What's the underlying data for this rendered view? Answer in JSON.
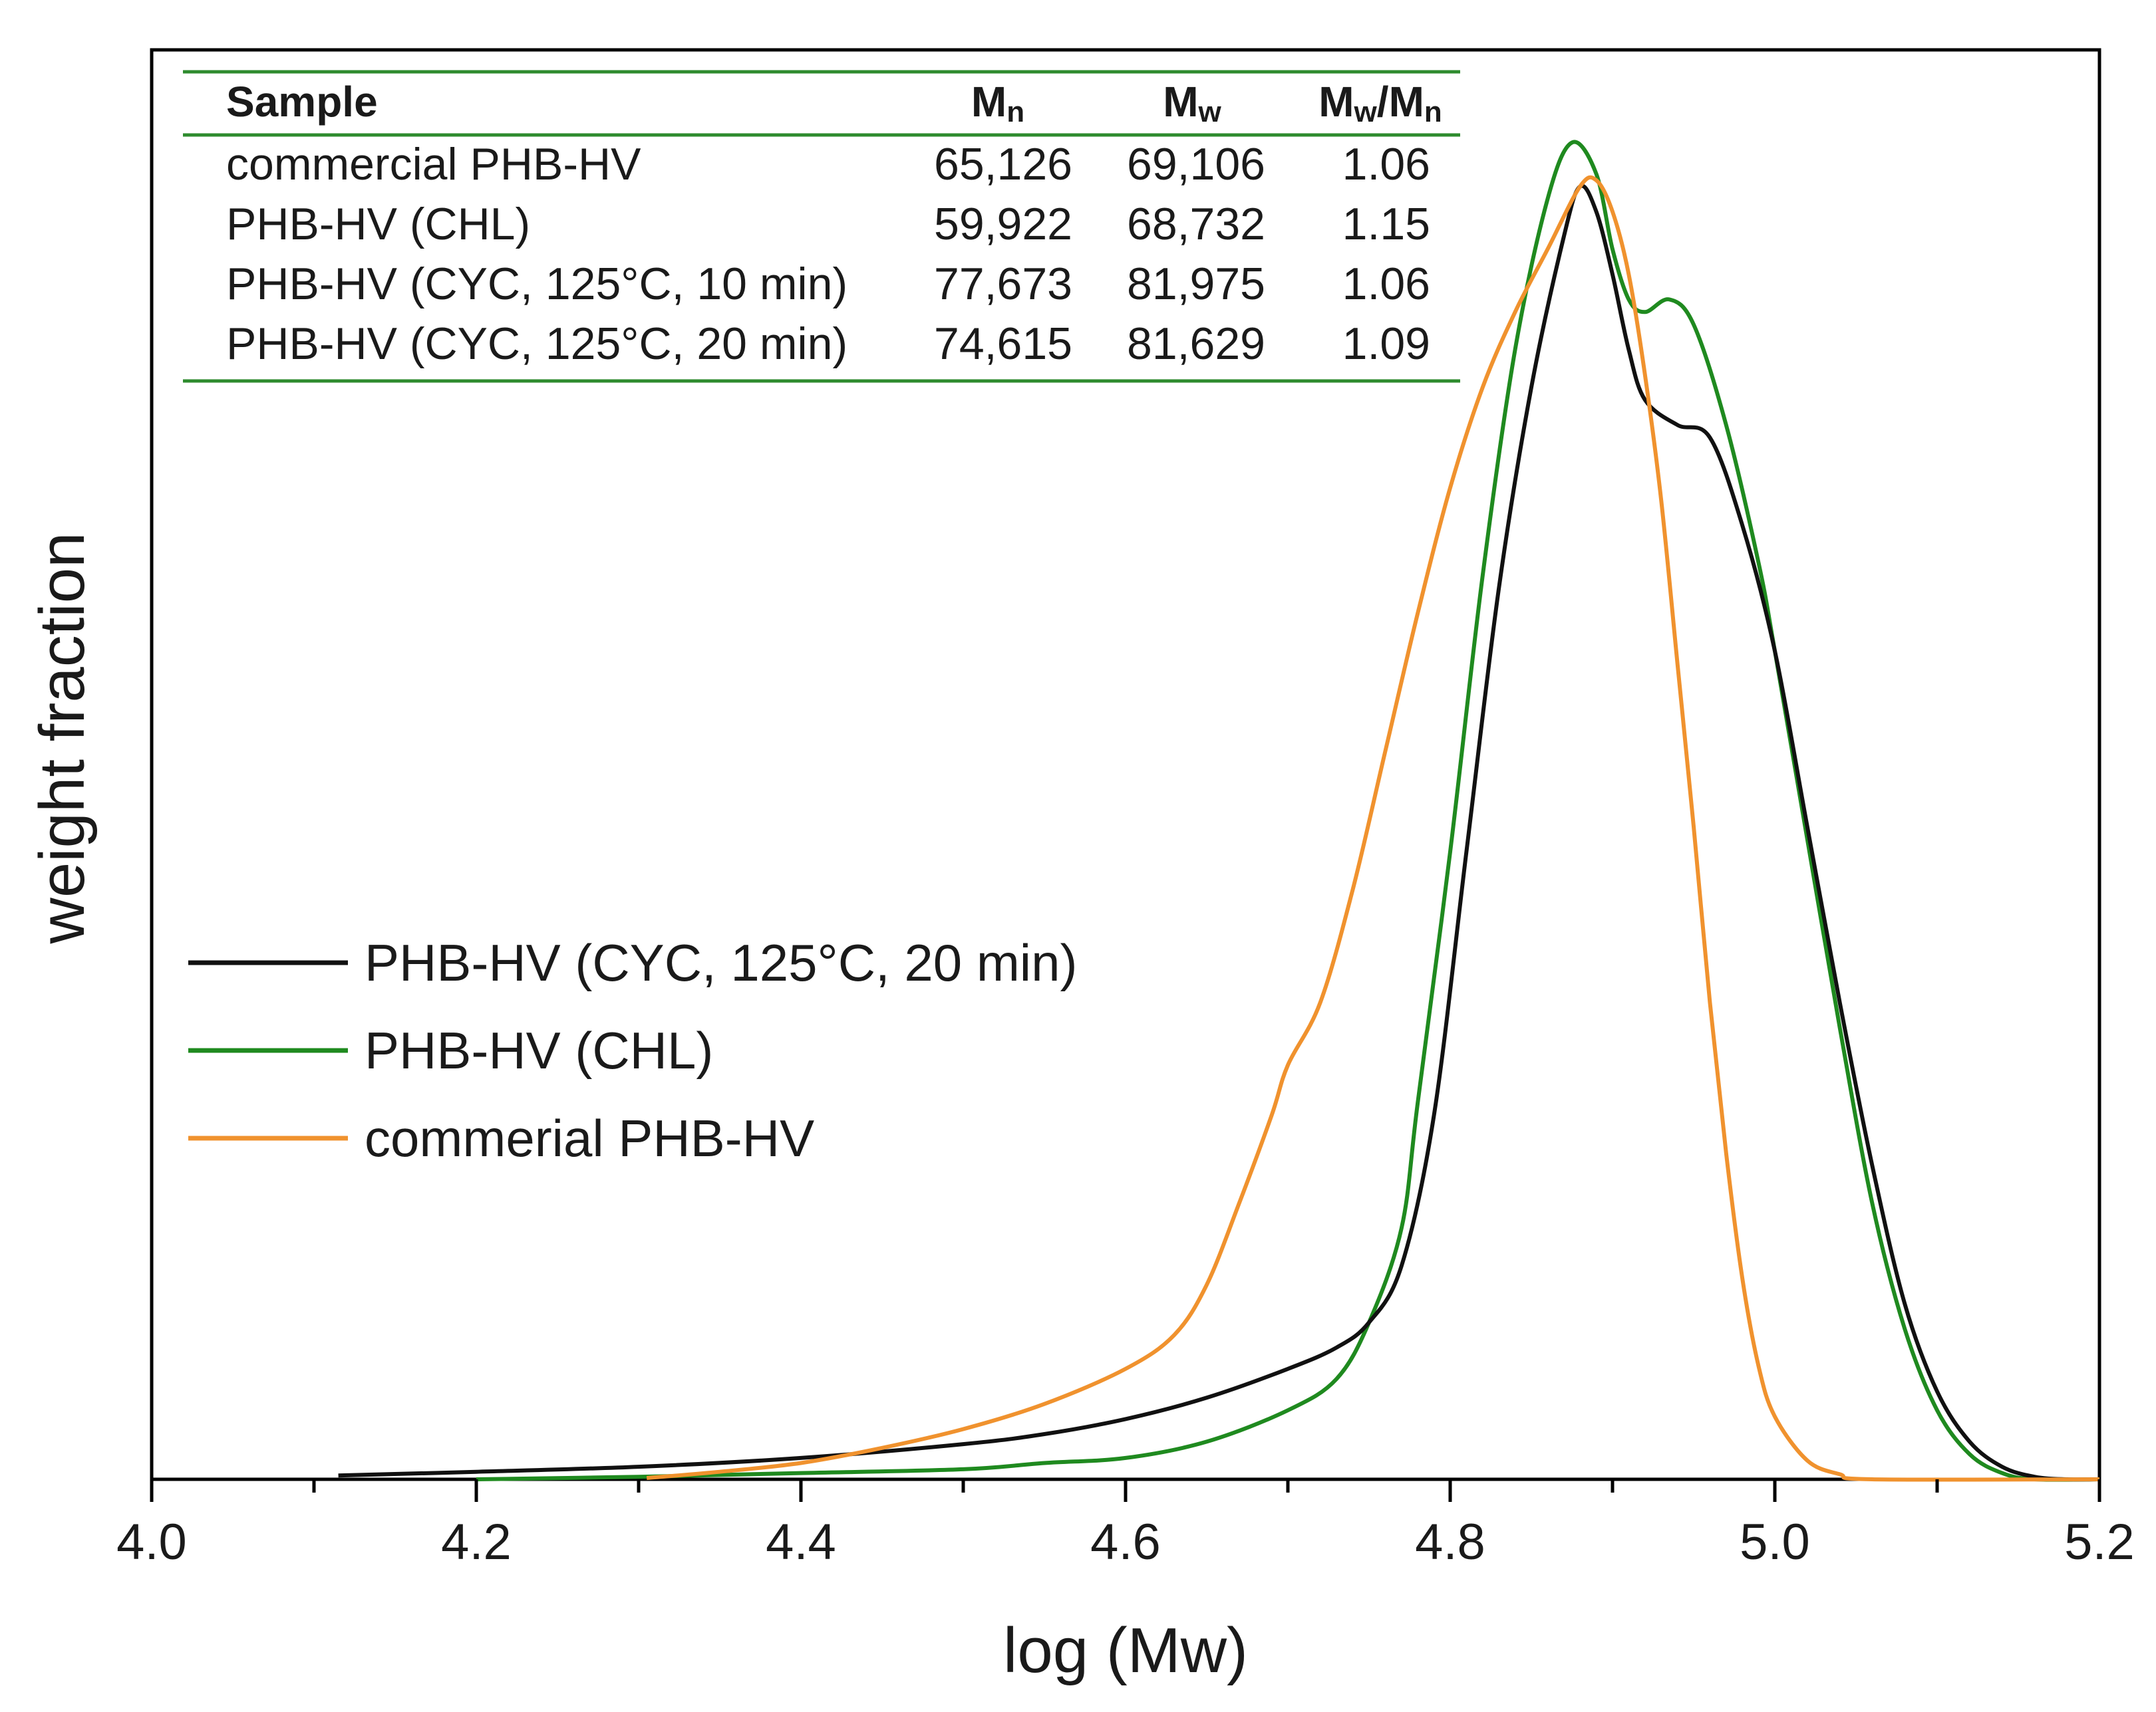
{
  "chart_data": {
    "type": "line",
    "xlabel": "log (Mw)",
    "ylabel": "weight fraction",
    "xlim": [
      4.0,
      5.2
    ],
    "ylim": [
      0,
      1.07
    ],
    "xticks": [
      "4.0",
      "4.2",
      "4.4",
      "4.6",
      "4.8",
      "5.0",
      "5.2"
    ],
    "x_tick_values": [
      4.0,
      4.2,
      4.4,
      4.6,
      4.8,
      5.0,
      5.2
    ],
    "grid": false,
    "legend_position": "middle-left",
    "series": [
      {
        "name": "PHB-HV (CYC, 125°C, 20 min)",
        "color": "#111111",
        "points": [
          [
            4.115,
            0.003
          ],
          [
            4.2,
            0.006
          ],
          [
            4.3,
            0.01
          ],
          [
            4.4,
            0.017
          ],
          [
            4.5,
            0.028
          ],
          [
            4.55,
            0.036
          ],
          [
            4.6,
            0.048
          ],
          [
            4.65,
            0.065
          ],
          [
            4.7,
            0.088
          ],
          [
            4.73,
            0.105
          ],
          [
            4.75,
            0.125
          ],
          [
            4.77,
            0.17
          ],
          [
            4.79,
            0.29
          ],
          [
            4.81,
            0.5
          ],
          [
            4.83,
            0.71
          ],
          [
            4.85,
            0.87
          ],
          [
            4.87,
            0.99
          ],
          [
            4.88,
            1.03
          ],
          [
            4.89,
            1.01
          ],
          [
            4.9,
            0.96
          ],
          [
            4.91,
            0.9
          ],
          [
            4.92,
            0.86
          ],
          [
            4.94,
            0.84
          ],
          [
            4.96,
            0.83
          ],
          [
            4.98,
            0.76
          ],
          [
            5.0,
            0.66
          ],
          [
            5.02,
            0.52
          ],
          [
            5.04,
            0.38
          ],
          [
            5.06,
            0.25
          ],
          [
            5.08,
            0.14
          ],
          [
            5.1,
            0.07
          ],
          [
            5.12,
            0.03
          ],
          [
            5.14,
            0.01
          ],
          [
            5.16,
            0.002
          ],
          [
            5.18,
            0.0
          ],
          [
            5.2,
            0.0
          ]
        ]
      },
      {
        "name": "PHB-HV (CHL)",
        "color": "#1f8a1f",
        "points": [
          [
            4.2,
            0.0
          ],
          [
            4.3,
            0.002
          ],
          [
            4.4,
            0.005
          ],
          [
            4.5,
            0.008
          ],
          [
            4.55,
            0.013
          ],
          [
            4.6,
            0.017
          ],
          [
            4.65,
            0.03
          ],
          [
            4.7,
            0.055
          ],
          [
            4.73,
            0.08
          ],
          [
            4.75,
            0.125
          ],
          [
            4.77,
            0.2
          ],
          [
            4.78,
            0.3
          ],
          [
            4.8,
            0.5
          ],
          [
            4.82,
            0.72
          ],
          [
            4.84,
            0.9
          ],
          [
            4.86,
            1.02
          ],
          [
            4.875,
            1.065
          ],
          [
            4.89,
            1.04
          ],
          [
            4.9,
            0.98
          ],
          [
            4.91,
            0.94
          ],
          [
            4.92,
            0.93
          ],
          [
            4.935,
            0.94
          ],
          [
            4.95,
            0.92
          ],
          [
            4.97,
            0.84
          ],
          [
            4.99,
            0.73
          ],
          [
            5.0,
            0.66
          ],
          [
            5.02,
            0.51
          ],
          [
            5.04,
            0.36
          ],
          [
            5.06,
            0.22
          ],
          [
            5.08,
            0.12
          ],
          [
            5.1,
            0.055
          ],
          [
            5.12,
            0.02
          ],
          [
            5.14,
            0.005
          ],
          [
            5.16,
            0.0
          ],
          [
            5.2,
            0.0
          ]
        ]
      },
      {
        "name": "commerial PHB-HV",
        "color": "#f0922e",
        "points": [
          [
            4.305,
            0.001
          ],
          [
            4.35,
            0.006
          ],
          [
            4.4,
            0.013
          ],
          [
            4.45,
            0.025
          ],
          [
            4.5,
            0.04
          ],
          [
            4.55,
            0.06
          ],
          [
            4.6,
            0.088
          ],
          [
            4.63,
            0.115
          ],
          [
            4.65,
            0.155
          ],
          [
            4.67,
            0.22
          ],
          [
            4.69,
            0.29
          ],
          [
            4.7,
            0.33
          ],
          [
            4.72,
            0.38
          ],
          [
            4.74,
            0.47
          ],
          [
            4.76,
            0.58
          ],
          [
            4.78,
            0.69
          ],
          [
            4.8,
            0.79
          ],
          [
            4.82,
            0.87
          ],
          [
            4.84,
            0.93
          ],
          [
            4.86,
            0.98
          ],
          [
            4.88,
            1.03
          ],
          [
            4.89,
            1.035
          ],
          [
            4.9,
            1.01
          ],
          [
            4.91,
            0.96
          ],
          [
            4.92,
            0.88
          ],
          [
            4.93,
            0.78
          ],
          [
            4.94,
            0.65
          ],
          [
            4.95,
            0.52
          ],
          [
            4.96,
            0.38
          ],
          [
            4.97,
            0.26
          ],
          [
            4.98,
            0.16
          ],
          [
            4.99,
            0.09
          ],
          [
            5.0,
            0.05
          ],
          [
            5.02,
            0.015
          ],
          [
            5.04,
            0.004
          ],
          [
            5.06,
            0.0
          ],
          [
            5.2,
            0.0
          ]
        ]
      }
    ],
    "table": {
      "headers": [
        {
          "main": "Sample",
          "sub": ""
        },
        {
          "main": "M",
          "sub": "n"
        },
        {
          "main": "M",
          "sub": "w"
        },
        {
          "main": "M",
          "sub": "w",
          "main2": "/M",
          "sub2": "n"
        }
      ],
      "rows": [
        [
          "commercial PHB-HV",
          "65,126",
          "69,106",
          "1.06"
        ],
        [
          "PHB-HV (CHL)",
          "59,922",
          "68,732",
          "1.15"
        ],
        [
          "PHB-HV (CYC, 125°C, 10 min)",
          "77,673",
          "81,975",
          "1.06"
        ],
        [
          "PHB-HV (CYC, 125°C, 20 min)",
          "74,615",
          "81,629",
          "1.09"
        ]
      ],
      "rule_color": "#2e8b2e"
    }
  }
}
